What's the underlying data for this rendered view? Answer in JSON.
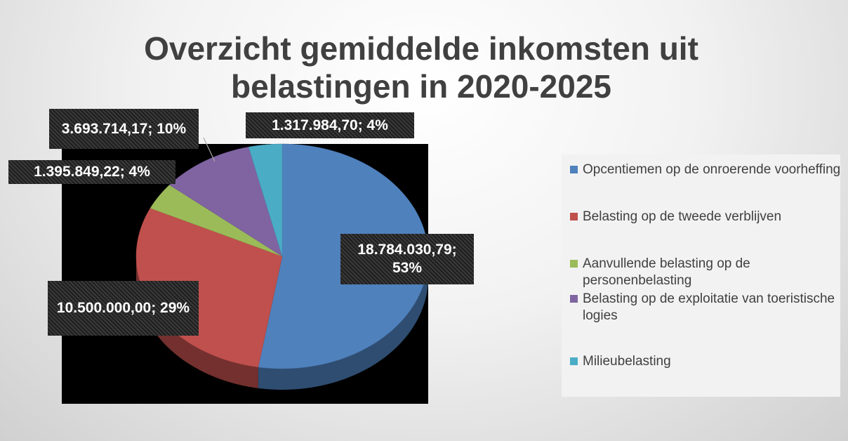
{
  "chart_data": {
    "type": "pie",
    "title": "Overzicht gemiddelde inkomsten uit belastingen in 2020-2025",
    "categories": [
      "Opcentiemen op de onroerende voorheffing",
      "Belasting op de tweede verblijven",
      "Aanvullende belasting op de personenbelasting",
      "Belasting op de exploitatie van toeristische logies",
      "Milieubelasting"
    ],
    "values": [
      18784030.79,
      10500000.0,
      1395849.22,
      3693714.17,
      1317984.7
    ],
    "value_labels": [
      "18.784.030,79; 53%",
      "10.500.000,00; 29%",
      "1.395.849,22; 4%",
      "3.693.714,17; 10%",
      "1.317.984,70; 4%"
    ],
    "colors": [
      "#4f81bd",
      "#c0504d",
      "#9bbb59",
      "#8064a2",
      "#4bacc6"
    ],
    "legend": "right"
  }
}
